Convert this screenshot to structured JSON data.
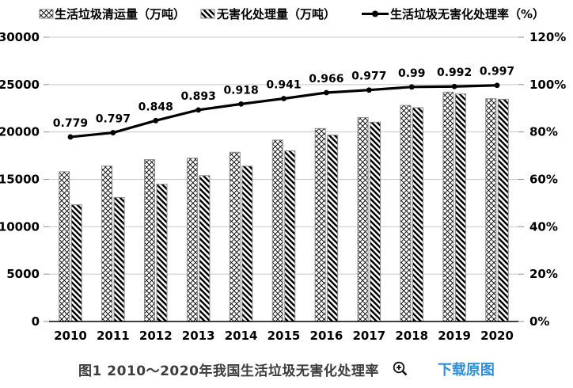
{
  "legend": [
    {
      "label": "生活垃圾清运量（万吨）",
      "swatch": "crosshatch-pattern"
    },
    {
      "label": "无害化处理量（万吨）",
      "swatch": "diagonal-pattern"
    },
    {
      "label": "生活垃圾无害化处理率（%）",
      "swatch": "line-marker"
    }
  ],
  "chart_data": {
    "type": "bar",
    "subtype": "bar+line combo, dual axis",
    "categories": [
      "2010",
      "2011",
      "2012",
      "2013",
      "2014",
      "2015",
      "2016",
      "2017",
      "2018",
      "2019",
      "2020"
    ],
    "series": [
      {
        "name": "生活垃圾清运量（万吨）",
        "type": "bar",
        "axis": "left",
        "pattern": "crosshatch",
        "values": [
          15805,
          16395,
          17081,
          17239,
          17860,
          19142,
          20362,
          21521,
          22802,
          24206,
          23512
        ]
      },
      {
        "name": "无害化处理量（万吨）",
        "type": "bar",
        "axis": "left",
        "pattern": "diagonal",
        "values": [
          12318,
          13090,
          14490,
          15394,
          16394,
          18013,
          19674,
          21035,
          22565,
          24013,
          23452
        ]
      },
      {
        "name": "生活垃圾无害化处理率（%）",
        "type": "line",
        "axis": "right",
        "values": [
          0.779,
          0.797,
          0.848,
          0.893,
          0.918,
          0.941,
          0.966,
          0.977,
          0.99,
          0.992,
          0.997
        ],
        "point_labels": [
          "0.779",
          "0.797",
          "0.848",
          "0.893",
          "0.918",
          "0.941",
          "0.966",
          "0.977",
          "0.99",
          "0.992",
          "0.997"
        ]
      }
    ],
    "left_axis": {
      "min": 0,
      "max": 30000,
      "step": 5000,
      "ticks": [
        "0",
        "5000",
        "10000",
        "15000",
        "20000",
        "25000",
        "30000"
      ]
    },
    "right_axis": {
      "min": 0,
      "max": 1.2,
      "step": 0.2,
      "ticks": [
        "0%",
        "20%",
        "40%",
        "60%",
        "80%",
        "100%",
        "120%"
      ]
    },
    "grid": true,
    "legend_position": "top"
  },
  "caption": {
    "text": "图1 2010～2020年我国生活垃圾无害化处理率",
    "link": "下载原图"
  },
  "colors": {
    "series_fill": "#000000",
    "bar_outline": "#8a8a8a",
    "line": "#000000",
    "grid": "#c8c8c8",
    "tick": "#8f8f8f",
    "axis_text": "#000000",
    "caption_text": "#3d3d3d",
    "link": "#2e8fdd",
    "background": "#ffffff"
  }
}
